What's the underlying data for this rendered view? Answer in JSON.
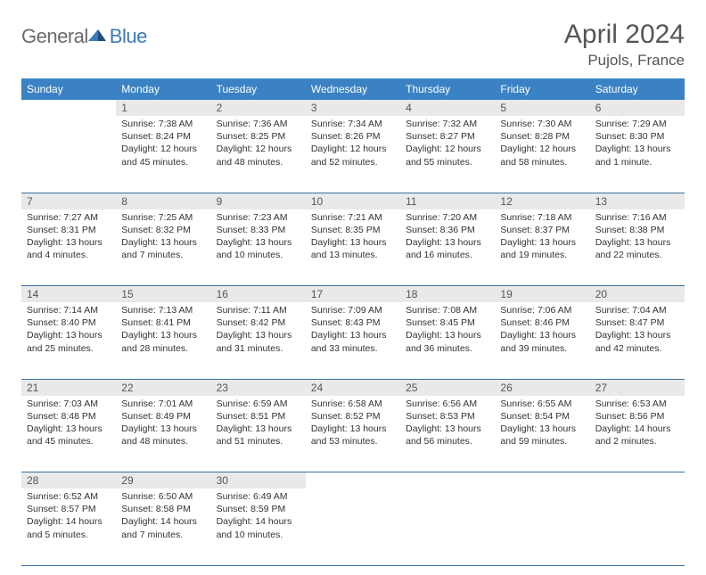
{
  "logo": {
    "part1": "General",
    "part2": "Blue"
  },
  "title": "April 2024",
  "location": "Pujols, France",
  "colors": {
    "header_bg": "#3b82c4",
    "header_text": "#ffffff",
    "daynum_bg": "#e9e9e9",
    "rule": "#3b6fa0",
    "logo_gray": "#6b6b6b",
    "logo_blue": "#3b7ab8"
  },
  "weekdays": [
    "Sunday",
    "Monday",
    "Tuesday",
    "Wednesday",
    "Thursday",
    "Friday",
    "Saturday"
  ],
  "weeks": [
    [
      null,
      {
        "n": 1,
        "sr": "7:38 AM",
        "ss": "8:24 PM",
        "dl": "12 hours and 45 minutes."
      },
      {
        "n": 2,
        "sr": "7:36 AM",
        "ss": "8:25 PM",
        "dl": "12 hours and 48 minutes."
      },
      {
        "n": 3,
        "sr": "7:34 AM",
        "ss": "8:26 PM",
        "dl": "12 hours and 52 minutes."
      },
      {
        "n": 4,
        "sr": "7:32 AM",
        "ss": "8:27 PM",
        "dl": "12 hours and 55 minutes."
      },
      {
        "n": 5,
        "sr": "7:30 AM",
        "ss": "8:28 PM",
        "dl": "12 hours and 58 minutes."
      },
      {
        "n": 6,
        "sr": "7:29 AM",
        "ss": "8:30 PM",
        "dl": "13 hours and 1 minute."
      }
    ],
    [
      {
        "n": 7,
        "sr": "7:27 AM",
        "ss": "8:31 PM",
        "dl": "13 hours and 4 minutes."
      },
      {
        "n": 8,
        "sr": "7:25 AM",
        "ss": "8:32 PM",
        "dl": "13 hours and 7 minutes."
      },
      {
        "n": 9,
        "sr": "7:23 AM",
        "ss": "8:33 PM",
        "dl": "13 hours and 10 minutes."
      },
      {
        "n": 10,
        "sr": "7:21 AM",
        "ss": "8:35 PM",
        "dl": "13 hours and 13 minutes."
      },
      {
        "n": 11,
        "sr": "7:20 AM",
        "ss": "8:36 PM",
        "dl": "13 hours and 16 minutes."
      },
      {
        "n": 12,
        "sr": "7:18 AM",
        "ss": "8:37 PM",
        "dl": "13 hours and 19 minutes."
      },
      {
        "n": 13,
        "sr": "7:16 AM",
        "ss": "8:38 PM",
        "dl": "13 hours and 22 minutes."
      }
    ],
    [
      {
        "n": 14,
        "sr": "7:14 AM",
        "ss": "8:40 PM",
        "dl": "13 hours and 25 minutes."
      },
      {
        "n": 15,
        "sr": "7:13 AM",
        "ss": "8:41 PM",
        "dl": "13 hours and 28 minutes."
      },
      {
        "n": 16,
        "sr": "7:11 AM",
        "ss": "8:42 PM",
        "dl": "13 hours and 31 minutes."
      },
      {
        "n": 17,
        "sr": "7:09 AM",
        "ss": "8:43 PM",
        "dl": "13 hours and 33 minutes."
      },
      {
        "n": 18,
        "sr": "7:08 AM",
        "ss": "8:45 PM",
        "dl": "13 hours and 36 minutes."
      },
      {
        "n": 19,
        "sr": "7:06 AM",
        "ss": "8:46 PM",
        "dl": "13 hours and 39 minutes."
      },
      {
        "n": 20,
        "sr": "7:04 AM",
        "ss": "8:47 PM",
        "dl": "13 hours and 42 minutes."
      }
    ],
    [
      {
        "n": 21,
        "sr": "7:03 AM",
        "ss": "8:48 PM",
        "dl": "13 hours and 45 minutes."
      },
      {
        "n": 22,
        "sr": "7:01 AM",
        "ss": "8:49 PM",
        "dl": "13 hours and 48 minutes."
      },
      {
        "n": 23,
        "sr": "6:59 AM",
        "ss": "8:51 PM",
        "dl": "13 hours and 51 minutes."
      },
      {
        "n": 24,
        "sr": "6:58 AM",
        "ss": "8:52 PM",
        "dl": "13 hours and 53 minutes."
      },
      {
        "n": 25,
        "sr": "6:56 AM",
        "ss": "8:53 PM",
        "dl": "13 hours and 56 minutes."
      },
      {
        "n": 26,
        "sr": "6:55 AM",
        "ss": "8:54 PM",
        "dl": "13 hours and 59 minutes."
      },
      {
        "n": 27,
        "sr": "6:53 AM",
        "ss": "8:56 PM",
        "dl": "14 hours and 2 minutes."
      }
    ],
    [
      {
        "n": 28,
        "sr": "6:52 AM",
        "ss": "8:57 PM",
        "dl": "14 hours and 5 minutes."
      },
      {
        "n": 29,
        "sr": "6:50 AM",
        "ss": "8:58 PM",
        "dl": "14 hours and 7 minutes."
      },
      {
        "n": 30,
        "sr": "6:49 AM",
        "ss": "8:59 PM",
        "dl": "14 hours and 10 minutes."
      },
      null,
      null,
      null,
      null
    ]
  ],
  "labels": {
    "sunrise": "Sunrise:",
    "sunset": "Sunset:",
    "daylight": "Daylight:"
  }
}
